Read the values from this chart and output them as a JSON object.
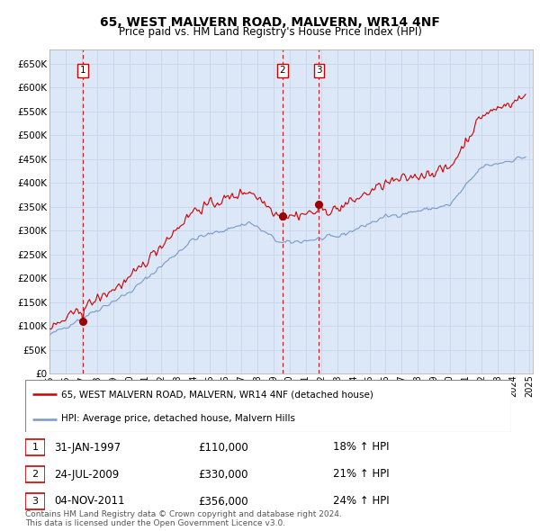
{
  "title": "65, WEST MALVERN ROAD, MALVERN, WR14 4NF",
  "subtitle": "Price paid vs. HM Land Registry's House Price Index (HPI)",
  "xlim_start": 1995.0,
  "xlim_end": 2025.2,
  "ylim": [
    0,
    680000
  ],
  "yticks": [
    0,
    50000,
    100000,
    150000,
    200000,
    250000,
    300000,
    350000,
    400000,
    450000,
    500000,
    550000,
    600000,
    650000
  ],
  "grid_color": "#c8d4e8",
  "bg_color": "#dce8f8",
  "red_line_color": "#cc0000",
  "blue_line_color": "#7799cc",
  "sale_color": "#990000",
  "dashed_color": "#cc0000",
  "legend_label_red": "65, WEST MALVERN ROAD, MALVERN, WR14 4NF (detached house)",
  "legend_label_blue": "HPI: Average price, detached house, Malvern Hills",
  "transactions": [
    {
      "num": 1,
      "date": "31-JAN-1997",
      "price": 110000,
      "hpi_pct": "18%",
      "x": 1997.08
    },
    {
      "num": 2,
      "date": "24-JUL-2009",
      "price": 330000,
      "hpi_pct": "21%",
      "x": 2009.56
    },
    {
      "num": 3,
      "date": "04-NOV-2011",
      "price": 356000,
      "hpi_pct": "24%",
      "x": 2011.84
    }
  ],
  "footer1": "Contains HM Land Registry data © Crown copyright and database right 2024.",
  "footer2": "This data is licensed under the Open Government Licence v3.0."
}
